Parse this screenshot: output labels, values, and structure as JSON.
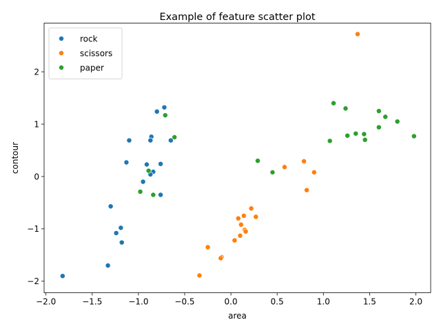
{
  "chart_data": {
    "type": "scatter",
    "title": "Example of feature scatter plot",
    "xlabel": "area",
    "ylabel": "contour",
    "xlim": [
      -2.02,
      2.16
    ],
    "ylim": [
      -2.22,
      2.93
    ],
    "x_ticks": [
      -2.0,
      -1.5,
      -1.0,
      -0.5,
      0.0,
      0.5,
      1.0,
      1.5,
      2.0
    ],
    "x_tick_labels": [
      "−2.0",
      "−1.5",
      "−1.0",
      "−0.5",
      "0.0",
      "0.5",
      "1.0",
      "1.5",
      "2.0"
    ],
    "y_ticks": [
      -2,
      -1,
      0,
      1,
      2
    ],
    "y_tick_labels": [
      "−2",
      "−1",
      "0",
      "1",
      "2"
    ],
    "grid": false,
    "legend": "top-left",
    "series": [
      {
        "name": "rock",
        "color": "#1f77b4",
        "points": [
          [
            -0.72,
            1.32
          ],
          [
            -0.8,
            1.24
          ],
          [
            -1.1,
            0.69
          ],
          [
            -0.86,
            0.76
          ],
          [
            -0.87,
            0.69
          ],
          [
            -0.65,
            0.69
          ],
          [
            -1.13,
            0.27
          ],
          [
            -0.91,
            0.23
          ],
          [
            -0.76,
            0.24
          ],
          [
            -0.84,
            0.09
          ],
          [
            -0.87,
            0.04
          ],
          [
            -0.95,
            -0.1
          ],
          [
            -0.76,
            -0.35
          ],
          [
            -1.3,
            -0.57
          ],
          [
            -1.19,
            -0.98
          ],
          [
            -1.24,
            -1.08
          ],
          [
            -1.18,
            -1.26
          ],
          [
            -1.33,
            -1.7
          ],
          [
            -1.82,
            -1.9
          ]
        ]
      },
      {
        "name": "scissors",
        "color": "#ff7f0e",
        "points": [
          [
            1.37,
            2.72
          ],
          [
            0.79,
            0.29
          ],
          [
            0.58,
            0.18
          ],
          [
            0.9,
            0.08
          ],
          [
            0.82,
            -0.26
          ],
          [
            0.22,
            -0.61
          ],
          [
            0.14,
            -0.75
          ],
          [
            0.27,
            -0.77
          ],
          [
            0.08,
            -0.8
          ],
          [
            0.11,
            -0.92
          ],
          [
            0.15,
            -1.02
          ],
          [
            0.16,
            -1.05
          ],
          [
            0.1,
            -1.13
          ],
          [
            0.04,
            -1.22
          ],
          [
            -0.25,
            -1.35
          ],
          [
            -0.1,
            -1.54
          ],
          [
            -0.11,
            -1.56
          ],
          [
            -0.34,
            -1.89
          ]
        ]
      },
      {
        "name": "paper",
        "color": "#2ca02c",
        "points": [
          [
            1.11,
            1.4
          ],
          [
            1.24,
            1.3
          ],
          [
            1.6,
            1.25
          ],
          [
            1.67,
            1.14
          ],
          [
            1.8,
            1.05
          ],
          [
            1.6,
            0.94
          ],
          [
            1.35,
            0.82
          ],
          [
            1.44,
            0.81
          ],
          [
            1.26,
            0.78
          ],
          [
            1.98,
            0.77
          ],
          [
            1.45,
            0.7
          ],
          [
            1.07,
            0.68
          ],
          [
            -0.71,
            1.17
          ],
          [
            -0.61,
            0.75
          ],
          [
            0.29,
            0.3
          ],
          [
            0.45,
            0.08
          ],
          [
            -0.89,
            0.11
          ],
          [
            -0.98,
            -0.29
          ],
          [
            -0.84,
            -0.35
          ]
        ]
      }
    ]
  }
}
